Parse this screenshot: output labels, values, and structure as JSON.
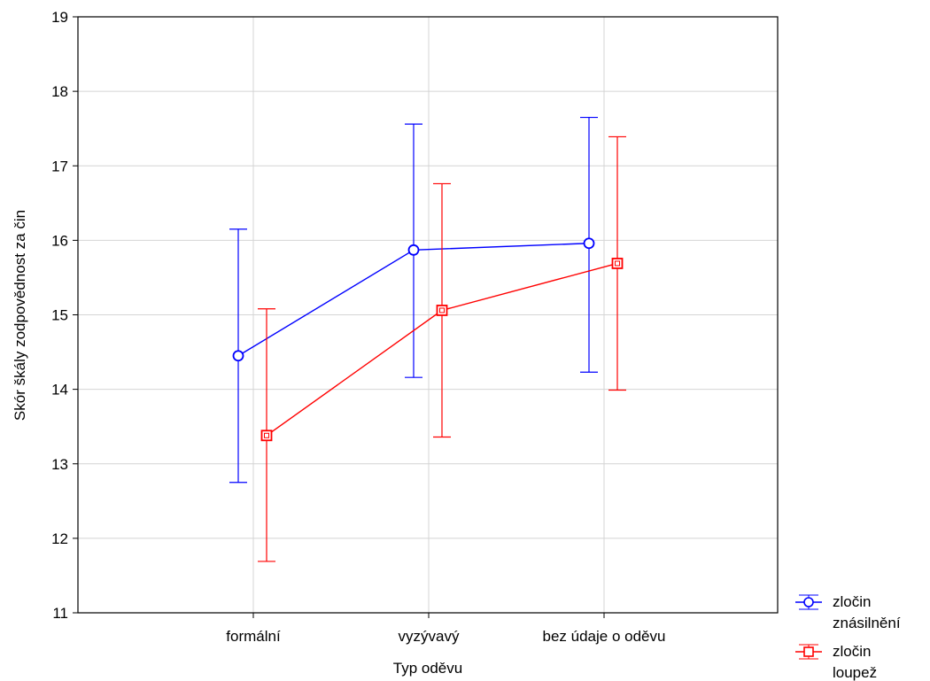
{
  "chart_data": {
    "type": "line",
    "title": "",
    "xlabel": "Typ oděvu",
    "ylabel": "Skór škály zodpovědnost za čin",
    "categories": [
      "formální",
      "vyzývavý",
      "bez údaje o oděvu"
    ],
    "ylim": [
      11,
      19
    ],
    "yticks": [
      11,
      12,
      13,
      14,
      15,
      16,
      17,
      18,
      19
    ],
    "grid": true,
    "legend_position": "bottom-right",
    "series": [
      {
        "name": "zločin znásilnění",
        "legend_lines": [
          "zločin",
          "znásilnění"
        ],
        "color": "#0000ff",
        "marker": "circle",
        "values": [
          14.45,
          15.87,
          15.96
        ],
        "lower": [
          12.75,
          14.16,
          14.23
        ],
        "upper": [
          16.15,
          17.56,
          17.65
        ]
      },
      {
        "name": "zločin loupež",
        "legend_lines": [
          "zločin",
          "loupež"
        ],
        "color": "#ff0000",
        "marker": "square",
        "values": [
          13.38,
          15.06,
          15.69
        ],
        "lower": [
          11.69,
          13.36,
          13.99
        ],
        "upper": [
          15.08,
          16.76,
          17.39
        ]
      }
    ]
  }
}
